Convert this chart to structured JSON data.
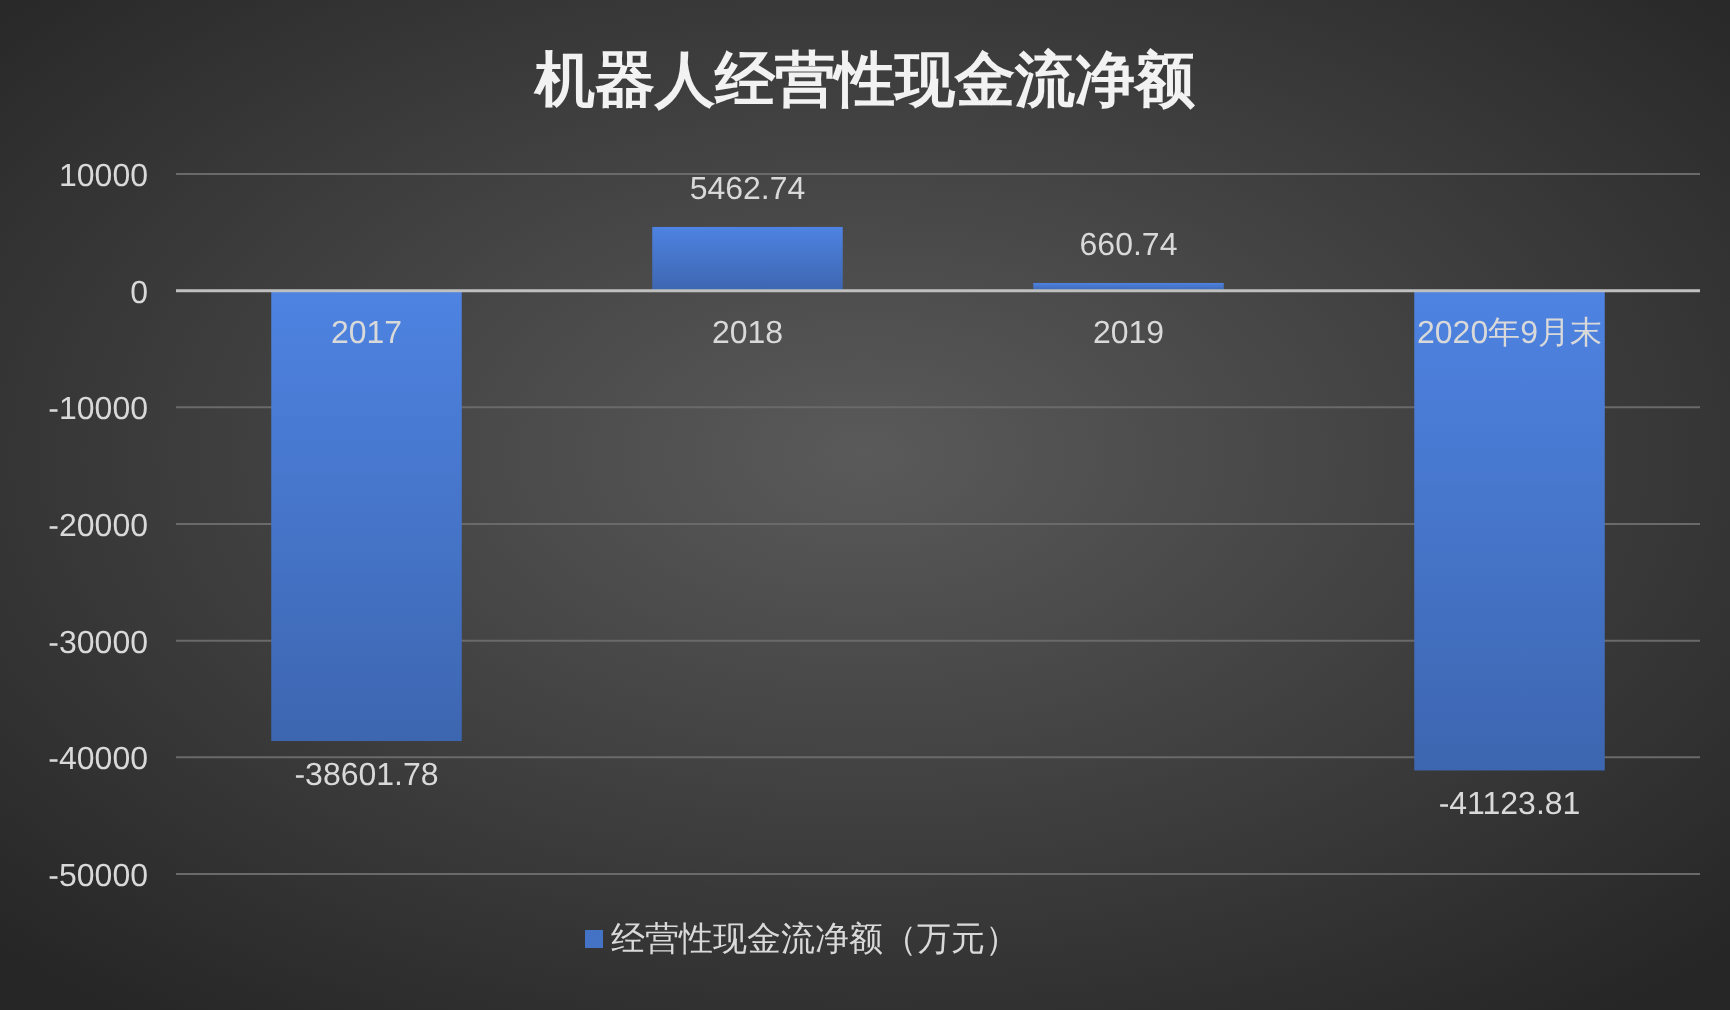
{
  "chart_data": {
    "type": "bar",
    "title": "机器人经营性现金流净额",
    "categories": [
      "2017",
      "2018",
      "2019",
      "2020年9月末"
    ],
    "series": [
      {
        "name": "经营性现金流净额（万元）",
        "color": "#4472c4",
        "values": [
          -38601.78,
          5462.74,
          660.74,
          -41123.81
        ]
      }
    ],
    "ylim": [
      -50000,
      10000
    ],
    "yticks": [
      -50000,
      -40000,
      -30000,
      -20000,
      -10000,
      0,
      10000
    ],
    "grid": "y",
    "legend": "bottom",
    "data_labels": true
  }
}
